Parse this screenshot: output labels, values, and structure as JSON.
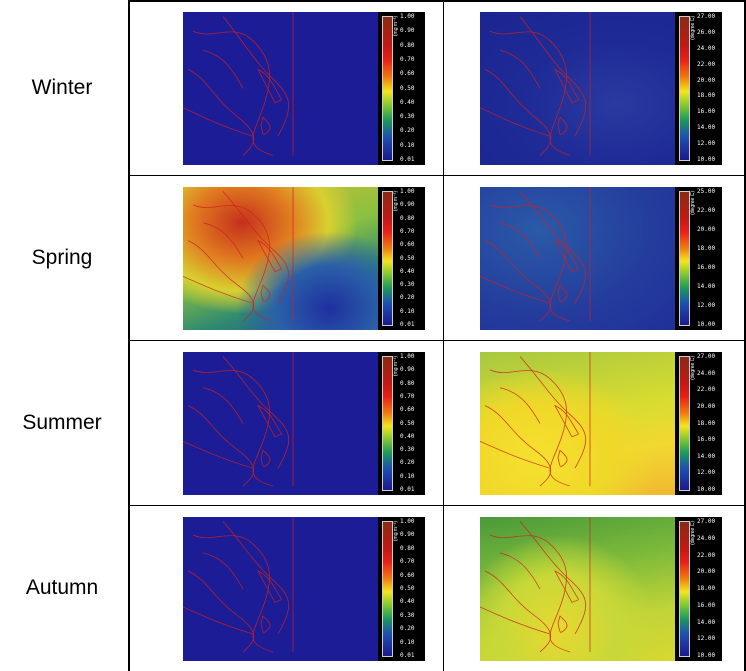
{
  "rows": [
    {
      "season": "Winter",
      "chl_colorbar": {
        "unit": "(mg m⁻³)",
        "ticks": [
          "1.00",
          "0.90",
          "0.80",
          "0.70",
          "0.60",
          "0.50",
          "0.40",
          "0.30",
          "0.20",
          "0.10",
          "0.01"
        ]
      },
      "sst_colorbar": {
        "unit": "(degree C)",
        "ticks": [
          "27.00",
          "26.00",
          "24.00",
          "22.00",
          "20.00",
          "18.00",
          "16.00",
          "14.00",
          "12.00",
          "10.00"
        ]
      }
    },
    {
      "season": "Spring",
      "chl_colorbar": {
        "unit": "(mg m⁻³)",
        "ticks": [
          "1.00",
          "0.90",
          "0.80",
          "0.70",
          "0.60",
          "0.50",
          "0.40",
          "0.30",
          "0.20",
          "0.10",
          "0.01"
        ]
      },
      "sst_colorbar": {
        "unit": "(degree C)",
        "ticks": [
          "25.00",
          "22.00",
          "20.00",
          "18.00",
          "16.00",
          "14.00",
          "12.00",
          "10.00"
        ]
      }
    },
    {
      "season": "Summer",
      "chl_colorbar": {
        "unit": "(mg m⁻³)",
        "ticks": [
          "1.00",
          "0.90",
          "0.80",
          "0.70",
          "0.60",
          "0.50",
          "0.40",
          "0.30",
          "0.20",
          "0.10",
          "0.01"
        ]
      },
      "sst_colorbar": {
        "unit": "(degree C)",
        "ticks": [
          "27.00",
          "24.00",
          "22.00",
          "20.00",
          "18.00",
          "16.00",
          "14.00",
          "12.00",
          "10.00"
        ]
      }
    },
    {
      "season": "Autumn",
      "chl_colorbar": {
        "unit": "(mg m⁻³)",
        "ticks": [
          "1.00",
          "0.90",
          "0.80",
          "0.70",
          "0.60",
          "0.50",
          "0.40",
          "0.30",
          "0.20",
          "0.10",
          "0.01"
        ]
      },
      "sst_colorbar": {
        "unit": "(degree C)",
        "ticks": [
          "27.00",
          "24.00",
          "22.00",
          "20.00",
          "18.00",
          "16.00",
          "14.00",
          "12.00",
          "10.00"
        ]
      }
    }
  ]
}
